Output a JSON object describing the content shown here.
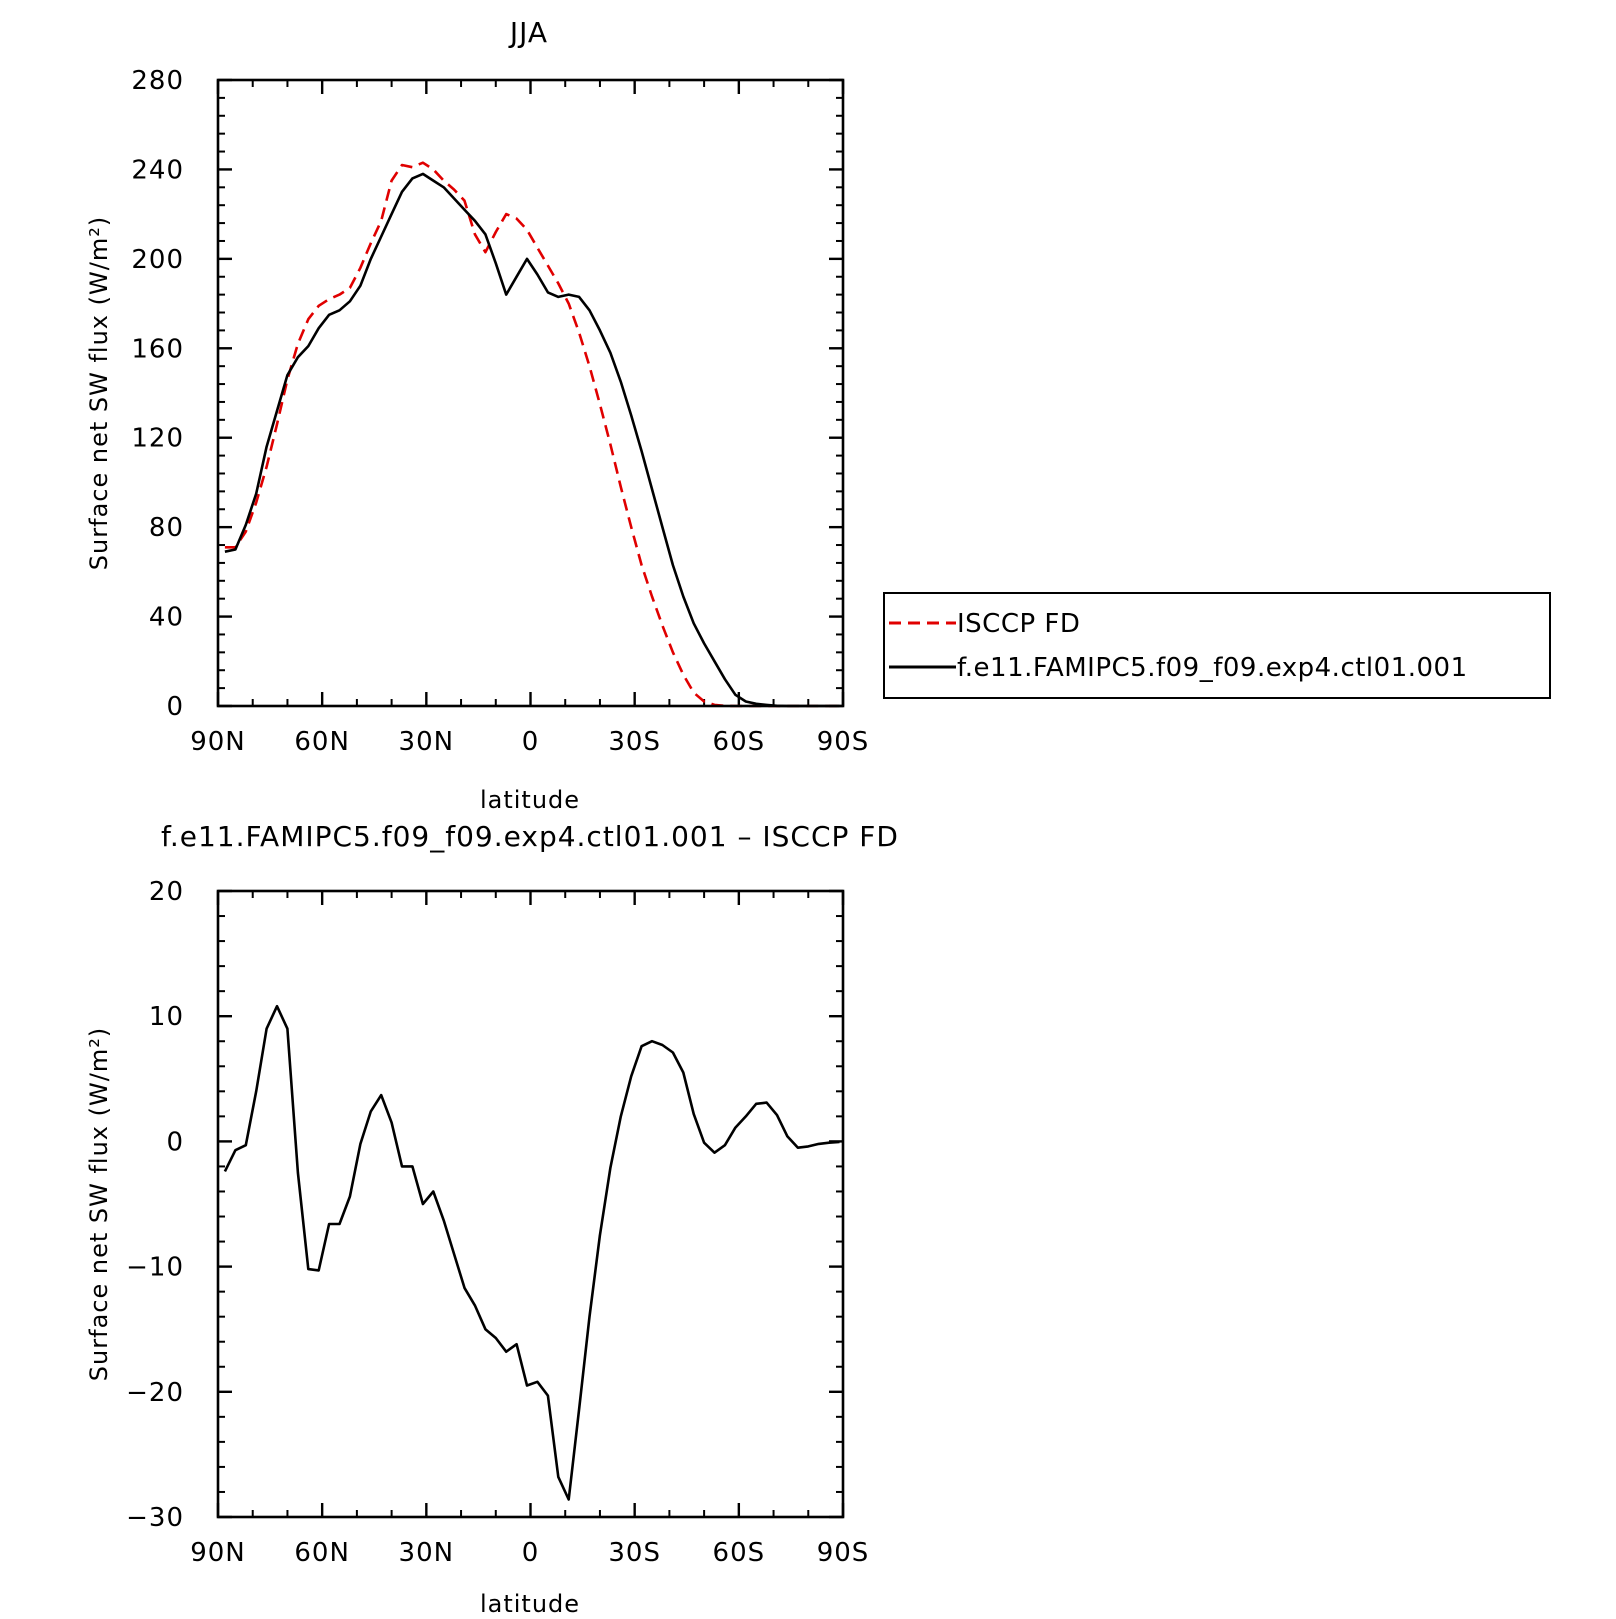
{
  "chart_data": [
    {
      "type": "line",
      "title": "JJA",
      "xlabel": "latitude",
      "ylabel": "Surface net SW flux (W/m²)",
      "xlim": [
        90,
        -90
      ],
      "ylim": [
        0,
        280
      ],
      "xticks": [
        {
          "value": 90,
          "label": "90N"
        },
        {
          "value": 60,
          "label": "60N"
        },
        {
          "value": 30,
          "label": "30N"
        },
        {
          "value": 0,
          "label": "0"
        },
        {
          "value": -30,
          "label": "30S"
        },
        {
          "value": -60,
          "label": "60S"
        },
        {
          "value": -90,
          "label": "90S"
        }
      ],
      "yticks": [
        {
          "value": 0,
          "label": "0"
        },
        {
          "value": 40,
          "label": "40"
        },
        {
          "value": 80,
          "label": "80"
        },
        {
          "value": 120,
          "label": "120"
        },
        {
          "value": 160,
          "label": "160"
        },
        {
          "value": 200,
          "label": "200"
        },
        {
          "value": 240,
          "label": "240"
        },
        {
          "value": 280,
          "label": "280"
        }
      ],
      "legend": "right-outside",
      "series": [
        {
          "name": "ISCCP FD",
          "color": "#e00000",
          "dash": true,
          "x": [
            88,
            85,
            82,
            79,
            76,
            73,
            70,
            67,
            64,
            61,
            58,
            55,
            52,
            49,
            46,
            43,
            40,
            37,
            34,
            31,
            28,
            25,
            22,
            19,
            16,
            13,
            10,
            7,
            4,
            1,
            -2,
            -5,
            -8,
            -11,
            -14,
            -17,
            -20,
            -23,
            -26,
            -29,
            -32,
            -35,
            -38,
            -41,
            -44,
            -47,
            -50,
            -53,
            -56,
            -59,
            -62,
            -65,
            -68,
            -71,
            -74,
            -77,
            -80,
            -83,
            -86,
            -89
          ],
          "y": [
            71,
            71,
            78,
            91,
            107,
            126,
            146,
            162,
            173,
            179,
            182,
            184,
            187,
            196,
            207,
            217,
            235,
            242,
            241,
            243,
            240,
            235,
            231,
            226,
            211,
            203,
            212,
            220,
            218,
            213,
            205,
            197,
            189,
            180,
            167,
            152,
            135,
            117,
            98,
            80,
            63,
            49,
            36,
            24,
            14,
            6,
            2,
            0.5,
            0.1,
            0,
            0,
            0,
            0,
            0,
            0,
            0,
            0,
            0,
            0,
            0
          ]
        },
        {
          "name": "f.e11.FAMIPC5.f09_f09.exp4.ctl01.001",
          "color": "#000000",
          "dash": false,
          "x": [
            88,
            85,
            82,
            79,
            76,
            73,
            70,
            67,
            64,
            61,
            58,
            55,
            52,
            49,
            46,
            43,
            40,
            37,
            34,
            31,
            28,
            25,
            22,
            19,
            16,
            13,
            10,
            7,
            4,
            1,
            -2,
            -5,
            -8,
            -11,
            -14,
            -17,
            -20,
            -23,
            -26,
            -29,
            -32,
            -35,
            -38,
            -41,
            -44,
            -47,
            -50,
            -53,
            -56,
            -59,
            -62,
            -65,
            -68,
            -71,
            -74,
            -77,
            -80,
            -83,
            -86,
            -89
          ],
          "y": [
            69,
            70,
            81,
            95,
            116,
            132,
            148,
            156,
            161,
            169,
            175,
            177,
            181,
            188,
            200,
            210,
            220,
            230,
            236,
            238,
            235,
            232,
            227,
            222,
            217,
            211,
            198,
            184,
            192,
            200,
            193,
            185,
            183,
            184,
            183,
            177,
            168,
            158,
            145,
            130,
            114,
            97,
            80,
            63,
            49,
            37,
            28,
            20,
            12,
            5,
            2,
            1,
            0.5,
            0.1,
            0,
            0,
            0,
            0,
            0,
            0
          ]
        }
      ]
    },
    {
      "type": "line",
      "title": "f.e11.FAMIPC5.f09_f09.exp4.ctl01.001 – ISCCP FD",
      "xlabel": "latitude",
      "ylabel": "Surface net SW flux (W/m²)",
      "xlim": [
        90,
        -90
      ],
      "ylim": [
        -30,
        20
      ],
      "xticks": [
        {
          "value": 90,
          "label": "90N"
        },
        {
          "value": 60,
          "label": "60N"
        },
        {
          "value": 30,
          "label": "30N"
        },
        {
          "value": 0,
          "label": "0"
        },
        {
          "value": -30,
          "label": "30S"
        },
        {
          "value": -60,
          "label": "60S"
        },
        {
          "value": -90,
          "label": "90S"
        }
      ],
      "yticks": [
        {
          "value": -30,
          "label": "−30"
        },
        {
          "value": -20,
          "label": "−20"
        },
        {
          "value": -10,
          "label": "−10"
        },
        {
          "value": 0,
          "label": "0"
        },
        {
          "value": 10,
          "label": "10"
        },
        {
          "value": 20,
          "label": "20"
        }
      ],
      "series": [
        {
          "color": "#000000",
          "dash": false,
          "x": [
            88,
            85,
            82,
            79,
            76,
            73,
            70,
            67,
            64,
            61,
            58,
            55,
            52,
            49,
            46,
            43,
            40,
            37,
            34,
            31,
            28,
            25,
            22,
            19,
            16,
            13,
            10,
            7,
            4,
            1,
            -2,
            -5,
            -8,
            -11,
            -14,
            -17,
            -20,
            -23,
            -26,
            -29,
            -32,
            -35,
            -38,
            -41,
            -44,
            -47,
            -50,
            -53,
            -56,
            -59,
            -62,
            -65,
            -68,
            -71,
            -74,
            -77,
            -80,
            -83,
            -86,
            -89
          ],
          "y": [
            -2.4,
            -0.7,
            -0.3,
            4,
            9,
            10.8,
            9,
            -2.5,
            -10.2,
            -10.3,
            -6.6,
            -6.6,
            -4.4,
            -0.2,
            2.4,
            3.7,
            1.5,
            -2,
            -2,
            -5,
            -4,
            -6.3,
            -9,
            -11.7,
            -13.1,
            -15,
            -15.7,
            -16.8,
            -16.2,
            -19.5,
            -19.2,
            -20.3,
            -26.8,
            -28.6,
            -21.4,
            -14,
            -7.5,
            -2.1,
            2,
            5.2,
            7.6,
            8,
            7.7,
            7.1,
            5.5,
            2.2,
            -0.1,
            -0.9,
            -0.3,
            1.1,
            2,
            3,
            3.1,
            2.1,
            0.4,
            -0.5,
            -0.4,
            -0.2,
            -0.1,
            -0.05
          ]
        }
      ]
    }
  ]
}
